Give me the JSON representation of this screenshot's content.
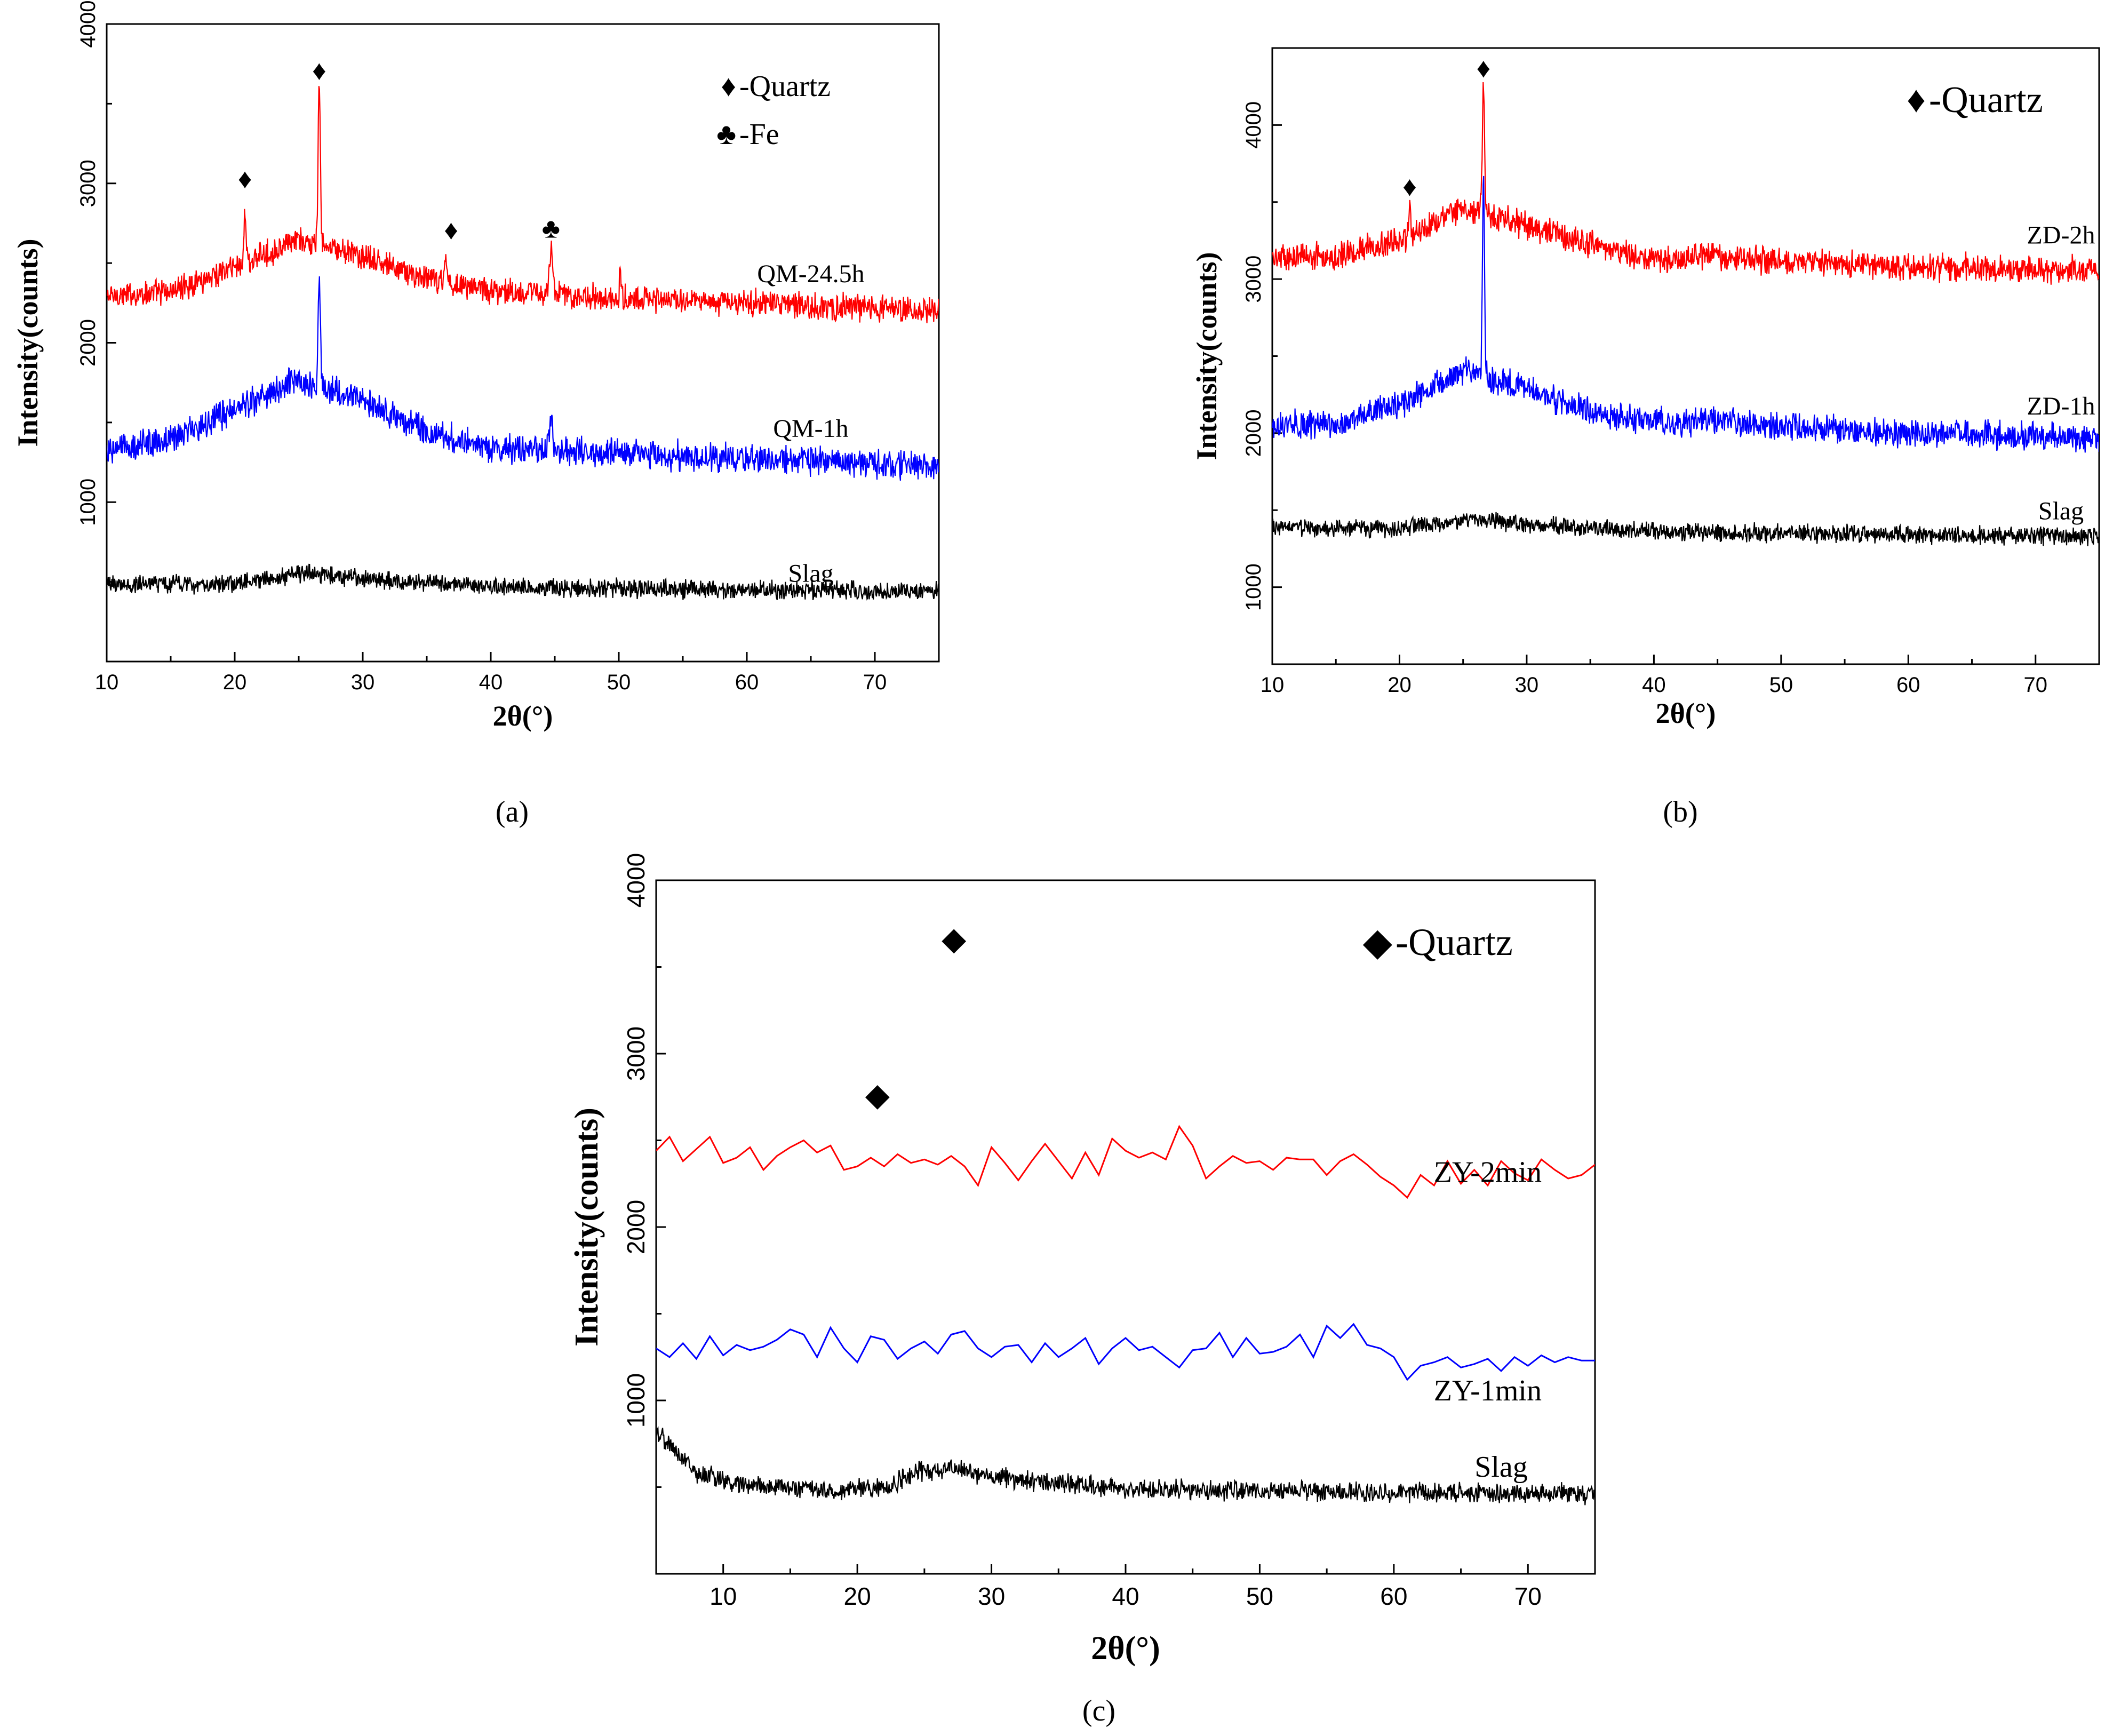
{
  "panel_labels": [
    "(a)",
    "(b)",
    "(c)"
  ],
  "colors": {
    "red": "#ff0000",
    "blue": "#0000ff",
    "black": "#000000"
  },
  "chart_data": [
    {
      "type": "line",
      "panel": "(a)",
      "xlabel": "2θ(°)",
      "ylabel": "Intensity(counts)",
      "xlim": [
        10,
        75
      ],
      "ylim": [
        0,
        4000
      ],
      "xticks": [
        10,
        20,
        30,
        40,
        50,
        60,
        70
      ],
      "yticks": [
        1000,
        2000,
        3000,
        4000
      ],
      "legend": [
        {
          "marker": "♦",
          "label": "-Quartz"
        },
        {
          "marker": "♣",
          "label": "-Fe"
        }
      ],
      "series": [
        {
          "name": "QM-24.5h",
          "color": "red",
          "baseline": [
            [
              10,
              2290
            ],
            [
              15,
              2320
            ],
            [
              20,
              2480
            ],
            [
              25,
              2640
            ],
            [
              30,
              2540
            ],
            [
              35,
              2400
            ],
            [
              40,
              2330
            ],
            [
              50,
              2280
            ],
            [
              60,
              2250
            ],
            [
              75,
              2200
            ]
          ],
          "noise": 100,
          "peaks": [
            [
              26.6,
              3600,
              0.25
            ],
            [
              20.8,
              2860,
              0.2
            ],
            [
              36.5,
              2560,
              0.25
            ],
            [
              44.7,
              2580,
              0.35
            ],
            [
              50.1,
              2420,
              0.2
            ]
          ],
          "label_at": [
            65,
            2380
          ]
        },
        {
          "name": "QM-1h",
          "color": "blue",
          "baseline": [
            [
              10,
              1330
            ],
            [
              15,
              1390
            ],
            [
              20,
              1580
            ],
            [
              25,
              1770
            ],
            [
              30,
              1640
            ],
            [
              35,
              1440
            ],
            [
              40,
              1340
            ],
            [
              50,
              1300
            ],
            [
              60,
              1280
            ],
            [
              75,
              1220
            ]
          ],
          "noise": 110,
          "peaks": [
            [
              26.6,
              2420,
              0.25
            ],
            [
              44.7,
              1560,
              0.35
            ]
          ],
          "label_at": [
            65,
            1410
          ]
        },
        {
          "name": "Slag",
          "color": "black",
          "baseline": [
            [
              10,
              480
            ],
            [
              20,
              490
            ],
            [
              26,
              560
            ],
            [
              30,
              520
            ],
            [
              40,
              470
            ],
            [
              60,
              450
            ],
            [
              75,
              440
            ]
          ],
          "noise": 70,
          "peaks": [],
          "label_at": [
            65,
            500
          ]
        }
      ],
      "annotations": [
        {
          "marker": "♦",
          "x": 20.8,
          "y": 2970
        },
        {
          "marker": "♦",
          "x": 26.6,
          "y": 3650
        },
        {
          "marker": "♦",
          "x": 36.9,
          "y": 2650
        },
        {
          "marker": "♣",
          "x": 44.7,
          "y": 2660
        }
      ]
    },
    {
      "type": "line",
      "panel": "(b)",
      "xlabel": "2θ(°)",
      "ylabel": "Intensity(counts)",
      "xlim": [
        10,
        75
      ],
      "ylim": [
        500,
        4500
      ],
      "xticks": [
        10,
        20,
        30,
        40,
        50,
        60,
        70
      ],
      "yticks": [
        1000,
        2000,
        3000,
        4000
      ],
      "legend": [
        {
          "marker": "♦",
          "label": "-Quartz"
        }
      ],
      "series": [
        {
          "name": "ZD-2h",
          "color": "red",
          "baseline": [
            [
              10,
              3140
            ],
            [
              15,
              3150
            ],
            [
              20,
              3250
            ],
            [
              25,
              3460
            ],
            [
              30,
              3350
            ],
            [
              35,
              3220
            ],
            [
              40,
              3130
            ],
            [
              45,
              3150
            ],
            [
              50,
              3110
            ],
            [
              60,
              3080
            ],
            [
              75,
              3060
            ]
          ],
          "noise": 110,
          "peaks": [
            [
              26.6,
              4230,
              0.25
            ],
            [
              20.8,
              3470,
              0.2
            ]
          ],
          "label_at": [
            72,
            3230
          ]
        },
        {
          "name": "ZD-1h",
          "color": "blue",
          "baseline": [
            [
              10,
              2050
            ],
            [
              15,
              2060
            ],
            [
              20,
              2190
            ],
            [
              25,
              2410
            ],
            [
              30,
              2290
            ],
            [
              35,
              2140
            ],
            [
              40,
              2070
            ],
            [
              45,
              2080
            ],
            [
              50,
              2040
            ],
            [
              60,
              2000
            ],
            [
              75,
              1970
            ]
          ],
          "noise": 110,
          "peaks": [
            [
              26.6,
              3720,
              0.22
            ],
            [
              44.5,
              2140,
              0.3
            ],
            [
              63.8,
              2050,
              0.3
            ]
          ],
          "label_at": [
            72,
            2120
          ]
        },
        {
          "name": "Slag",
          "color": "black",
          "baseline": [
            [
              10,
              1390
            ],
            [
              20,
              1380
            ],
            [
              26,
              1440
            ],
            [
              30,
              1410
            ],
            [
              40,
              1360
            ],
            [
              60,
              1340
            ],
            [
              75,
              1330
            ]
          ],
          "noise": 70,
          "peaks": [],
          "label_at": [
            72,
            1440
          ]
        }
      ],
      "annotations": [
        {
          "marker": "♦",
          "x": 20.8,
          "y": 3540
        },
        {
          "marker": "♦",
          "x": 26.6,
          "y": 4310
        }
      ]
    },
    {
      "type": "line",
      "panel": "(c)",
      "xlabel": "2θ(°)",
      "ylabel": "Intensity(counts)",
      "xlim": [
        5,
        75
      ],
      "ylim": [
        0,
        4000
      ],
      "xticks": [
        10,
        20,
        30,
        40,
        50,
        60,
        70
      ],
      "yticks": [
        1000,
        2000,
        3000,
        4000
      ],
      "legend": [
        {
          "marker": "◆",
          "label": "-Quartz"
        }
      ],
      "series": [
        {
          "name": "ZY-2min",
          "color": "red",
          "sparse": true,
          "values_x": [
            5,
            6,
            7,
            8,
            9,
            10,
            11,
            12,
            13,
            14,
            15,
            16,
            17,
            18,
            19,
            20,
            21,
            22,
            23,
            24,
            25,
            26,
            27,
            28,
            29,
            30,
            31,
            32,
            33,
            34,
            35,
            36,
            37,
            38,
            39,
            40,
            41,
            42,
            43,
            44,
            45,
            46,
            47,
            48,
            49,
            50,
            51,
            52,
            53,
            54,
            55,
            56,
            57,
            58,
            59,
            60,
            61,
            62,
            63,
            64,
            65,
            66,
            67,
            68,
            69,
            70,
            71,
            72,
            73,
            74,
            75
          ],
          "values_y": [
            2440,
            2520,
            2380,
            2450,
            2520,
            2370,
            2400,
            2460,
            2330,
            2410,
            2460,
            2500,
            2430,
            2470,
            2330,
            2350,
            2400,
            2350,
            2420,
            2370,
            2390,
            2360,
            2410,
            2350,
            2240,
            2460,
            2370,
            2270,
            2380,
            2480,
            2380,
            2280,
            2430,
            2300,
            2510,
            2440,
            2400,
            2430,
            2390,
            2580,
            2470,
            2280,
            2350,
            2410,
            2370,
            2380,
            2330,
            2400,
            2390,
            2390,
            2300,
            2380,
            2420,
            2360,
            2290,
            2240,
            2170,
            2300,
            2240,
            2380,
            2250,
            2330,
            2240,
            2380,
            2310,
            2270,
            2390,
            2330,
            2280,
            2300,
            2360
          ],
          "label_at": [
            67,
            2260
          ]
        },
        {
          "name": "ZY-1min",
          "color": "blue",
          "sparse": true,
          "values_x": [
            5,
            6,
            7,
            8,
            9,
            10,
            11,
            12,
            13,
            14,
            15,
            16,
            17,
            18,
            19,
            20,
            21,
            22,
            23,
            24,
            25,
            26,
            27,
            28,
            29,
            30,
            31,
            32,
            33,
            34,
            35,
            36,
            37,
            38,
            39,
            40,
            41,
            42,
            43,
            44,
            45,
            46,
            47,
            48,
            49,
            50,
            51,
            52,
            53,
            54,
            55,
            56,
            57,
            58,
            59,
            60,
            61,
            62,
            63,
            64,
            65,
            66,
            67,
            68,
            69,
            70,
            71,
            72,
            73,
            74,
            75
          ],
          "values_y": [
            1300,
            1250,
            1330,
            1240,
            1370,
            1260,
            1320,
            1290,
            1310,
            1350,
            1410,
            1380,
            1250,
            1420,
            1300,
            1220,
            1370,
            1350,
            1240,
            1300,
            1340,
            1270,
            1380,
            1400,
            1300,
            1250,
            1310,
            1320,
            1220,
            1330,
            1250,
            1300,
            1360,
            1210,
            1300,
            1360,
            1290,
            1310,
            1250,
            1190,
            1290,
            1300,
            1390,
            1250,
            1360,
            1270,
            1280,
            1310,
            1380,
            1250,
            1430,
            1360,
            1440,
            1320,
            1300,
            1250,
            1120,
            1200,
            1220,
            1250,
            1190,
            1210,
            1240,
            1170,
            1250,
            1200,
            1260,
            1220,
            1250,
            1230,
            1230
          ],
          "label_at": [
            67,
            1000
          ]
        },
        {
          "name": "Slag",
          "color": "black",
          "baseline": [
            [
              5,
              820
            ],
            [
              8,
              580
            ],
            [
              12,
              510
            ],
            [
              18,
              480
            ],
            [
              22,
              500
            ],
            [
              25,
              600
            ],
            [
              28,
              590
            ],
            [
              32,
              540
            ],
            [
              40,
              490
            ],
            [
              60,
              470
            ],
            [
              75,
              460
            ]
          ],
          "noise": 70,
          "peaks": [],
          "label_at": [
            68,
            560
          ]
        }
      ],
      "annotations": [
        {
          "marker": "◆",
          "x": 21.5,
          "y": 2700
        },
        {
          "marker": "◆",
          "x": 27.2,
          "y": 3600
        }
      ]
    }
  ]
}
